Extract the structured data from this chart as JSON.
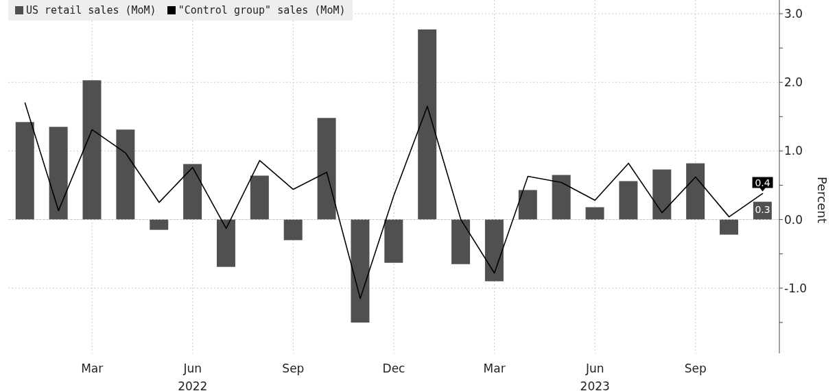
{
  "chart_data": {
    "type": "bar",
    "categories": [
      null,
      null,
      "Mar",
      null,
      null,
      "Jun\n2022",
      null,
      null,
      "Sep",
      null,
      null,
      "Dec",
      null,
      null,
      "Mar",
      null,
      null,
      "Jun\n2023",
      null,
      null,
      "Sep",
      null,
      null
    ],
    "series": [
      {
        "name": "US retail sales (MoM)",
        "color": "#505050",
        "values": [
          1.42,
          1.35,
          2.03,
          1.31,
          -0.15,
          0.81,
          -0.69,
          0.64,
          -0.3,
          1.48,
          -1.5,
          -0.63,
          2.77,
          -0.65,
          -0.9,
          0.43,
          0.65,
          0.18,
          0.56,
          0.73,
          0.82,
          -0.22,
          0.26
        ],
        "value_labels": [
          null,
          null,
          null,
          null,
          null,
          null,
          null,
          null,
          null,
          null,
          null,
          null,
          null,
          null,
          null,
          null,
          null,
          null,
          null,
          null,
          null,
          null,
          "0.3"
        ]
      },
      {
        "name": "\"Control group\" sales (MoM)",
        "type": "line",
        "color": "#000000",
        "values": [
          1.7,
          0.13,
          1.31,
          0.97,
          0.25,
          0.76,
          -0.13,
          0.86,
          0.44,
          0.69,
          -1.15,
          0.35,
          1.65,
          0.0,
          -0.78,
          0.63,
          0.54,
          0.28,
          0.82,
          0.1,
          0.62,
          0.04,
          0.38
        ],
        "value_labels": [
          null,
          null,
          null,
          null,
          null,
          null,
          null,
          null,
          null,
          null,
          null,
          null,
          null,
          null,
          null,
          null,
          null,
          null,
          null,
          null,
          null,
          null,
          "0.4"
        ]
      }
    ],
    "ylabel": "Percent",
    "ylim": [
      -1.95,
      3.2
    ],
    "yticks": [
      {
        "value": 3,
        "label": "3.0"
      },
      {
        "value": 2.5,
        "label": null
      },
      {
        "value": 2,
        "label": "2.0"
      },
      {
        "value": 1.5,
        "label": null
      },
      {
        "value": 1,
        "label": "1.0"
      },
      {
        "value": 0.5,
        "label": null
      },
      {
        "value": 0,
        "label": "0.0"
      },
      {
        "value": -0.5,
        "label": null
      },
      {
        "value": -1,
        "label": "-1.0"
      },
      {
        "value": -1.5,
        "label": null
      }
    ],
    "grid": true,
    "legend": "top left",
    "marker": "none"
  }
}
